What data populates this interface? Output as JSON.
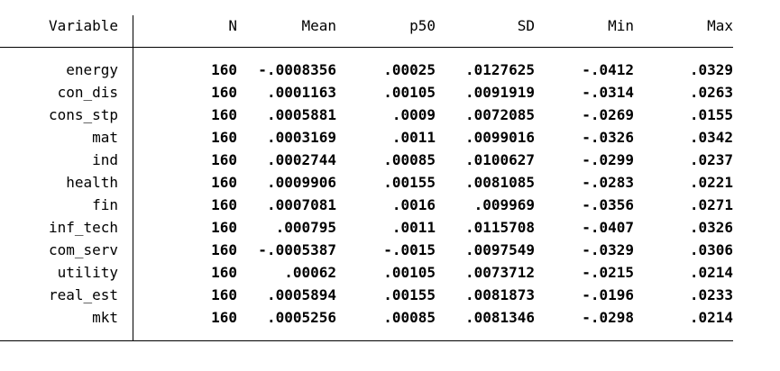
{
  "headers": {
    "variable": "Variable",
    "n": "N",
    "mean": "Mean",
    "p50": "p50",
    "sd": "SD",
    "min": "Min",
    "max": "Max"
  },
  "rows": [
    {
      "variable": "energy",
      "n": "160",
      "mean": "-.0008356",
      "p50": ".00025",
      "sd": ".0127625",
      "min": "-.0412",
      "max": ".0329"
    },
    {
      "variable": "con_dis",
      "n": "160",
      "mean": ".0001163",
      "p50": ".00105",
      "sd": ".0091919",
      "min": "-.0314",
      "max": ".0263"
    },
    {
      "variable": "cons_stp",
      "n": "160",
      "mean": ".0005881",
      "p50": ".0009",
      "sd": ".0072085",
      "min": "-.0269",
      "max": ".0155"
    },
    {
      "variable": "mat",
      "n": "160",
      "mean": ".0003169",
      "p50": ".0011",
      "sd": ".0099016",
      "min": "-.0326",
      "max": ".0342"
    },
    {
      "variable": "ind",
      "n": "160",
      "mean": ".0002744",
      "p50": ".00085",
      "sd": ".0100627",
      "min": "-.0299",
      "max": ".0237"
    },
    {
      "variable": "health",
      "n": "160",
      "mean": ".0009906",
      "p50": ".00155",
      "sd": ".0081085",
      "min": "-.0283",
      "max": ".0221"
    },
    {
      "variable": "fin",
      "n": "160",
      "mean": ".0007081",
      "p50": ".0016",
      "sd": ".009969",
      "min": "-.0356",
      "max": ".0271"
    },
    {
      "variable": "inf_tech",
      "n": "160",
      "mean": ".000795",
      "p50": ".0011",
      "sd": ".0115708",
      "min": "-.0407",
      "max": ".0326"
    },
    {
      "variable": "com_serv",
      "n": "160",
      "mean": "-.0005387",
      "p50": "-.0015",
      "sd": ".0097549",
      "min": "-.0329",
      "max": ".0306"
    },
    {
      "variable": "utility",
      "n": "160",
      "mean": ".00062",
      "p50": ".00105",
      "sd": ".0073712",
      "min": "-.0215",
      "max": ".0214"
    },
    {
      "variable": "real_est",
      "n": "160",
      "mean": ".0005894",
      "p50": ".00155",
      "sd": ".0081873",
      "min": "-.0196",
      "max": ".0233"
    },
    {
      "variable": "mkt",
      "n": "160",
      "mean": ".0005256",
      "p50": ".00085",
      "sd": ".0081346",
      "min": "-.0298",
      "max": ".0214"
    }
  ]
}
